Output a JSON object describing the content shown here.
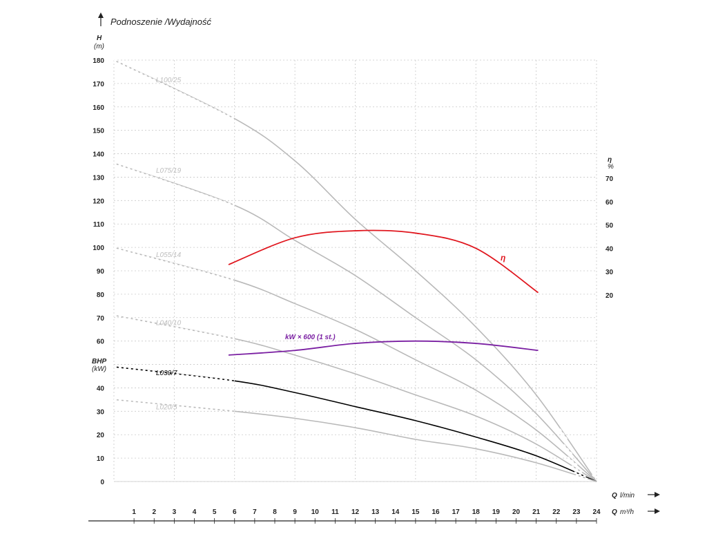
{
  "header": {
    "title": "Podnoszenie /Wydajność"
  },
  "axes": {
    "left_unit_name": "H",
    "left_unit": "(m)",
    "bhp_name": "BHP",
    "bhp_unit": "(kW)",
    "right_unit_name": "η",
    "right_unit": "%",
    "bottom_flow_min_q": "Q",
    "bottom_flow_min_unit": "l/min",
    "bottom_flow_m3_q": "Q",
    "bottom_flow_m3_unit": "m³/h"
  },
  "chart_data": {
    "type": "line",
    "title": "Podnoszenie /Wydajność",
    "y_left": {
      "label": "H (m)",
      "ticks": [
        0,
        10,
        20,
        30,
        40,
        50,
        60,
        70,
        80,
        90,
        100,
        110,
        120,
        130,
        140,
        150,
        160,
        170,
        180
      ],
      "range": [
        0,
        180
      ]
    },
    "y_right": {
      "label": "η %",
      "ticks": [
        20,
        30,
        40,
        50,
        60,
        70
      ],
      "range": [
        0,
        100
      ]
    },
    "x": {
      "label": "Q l/min",
      "range": [
        0,
        24
      ]
    },
    "x_second": {
      "label": "Q m³/h",
      "ticks": [
        1,
        2,
        3,
        4,
        5,
        6,
        7,
        8,
        9,
        10,
        11,
        12,
        13,
        14,
        15,
        16,
        17,
        18,
        19,
        20,
        21,
        22,
        23,
        24
      ]
    },
    "grid": true,
    "series": [
      {
        "name": "L100/25",
        "color": "#b9b9b9",
        "x": [
          0,
          6,
          9,
          12,
          15,
          18,
          21,
          24
        ],
        "values": [
          180,
          155,
          137,
          112,
          90,
          66,
          37,
          0
        ]
      },
      {
        "name": "L075/19",
        "color": "#b9b9b9",
        "x": [
          0,
          6,
          9,
          12,
          15,
          18,
          21,
          24
        ],
        "values": [
          136,
          118,
          103,
          88,
          70,
          52,
          29,
          0
        ]
      },
      {
        "name": "L055/14",
        "color": "#b9b9b9",
        "x": [
          0,
          6,
          9,
          12,
          15,
          18,
          21,
          24
        ],
        "values": [
          100,
          86,
          76,
          65,
          52,
          39,
          22,
          0
        ]
      },
      {
        "name": "L040/10",
        "color": "#b9b9b9",
        "x": [
          0,
          6,
          9,
          12,
          15,
          18,
          21,
          24
        ],
        "values": [
          71,
          61,
          54,
          46,
          37,
          28,
          16,
          0
        ]
      },
      {
        "name": "L030/7",
        "color": "#000000",
        "x": [
          0,
          6,
          9,
          12,
          15,
          18,
          21,
          24
        ],
        "values": [
          49,
          43,
          38,
          32,
          26,
          19,
          11,
          0
        ]
      },
      {
        "name": "L020/5",
        "color": "#b9b9b9",
        "x": [
          0,
          6,
          9,
          12,
          15,
          18,
          21,
          24
        ],
        "values": [
          35,
          30,
          27,
          23,
          18,
          14,
          8,
          0
        ]
      },
      {
        "name": "η",
        "color": "#e0161e",
        "axis": "right",
        "x": [
          5.7,
          9,
          12,
          15,
          18,
          21.1
        ],
        "values": [
          33,
          44.5,
          47.5,
          46.5,
          40,
          21
        ]
      },
      {
        "name": "kW × 600 (1 st.)",
        "color": "#7a1fa2",
        "x": [
          5.7,
          9,
          12,
          15,
          18,
          21.1
        ],
        "values": [
          54,
          56,
          59,
          60,
          59,
          56
        ]
      }
    ]
  }
}
